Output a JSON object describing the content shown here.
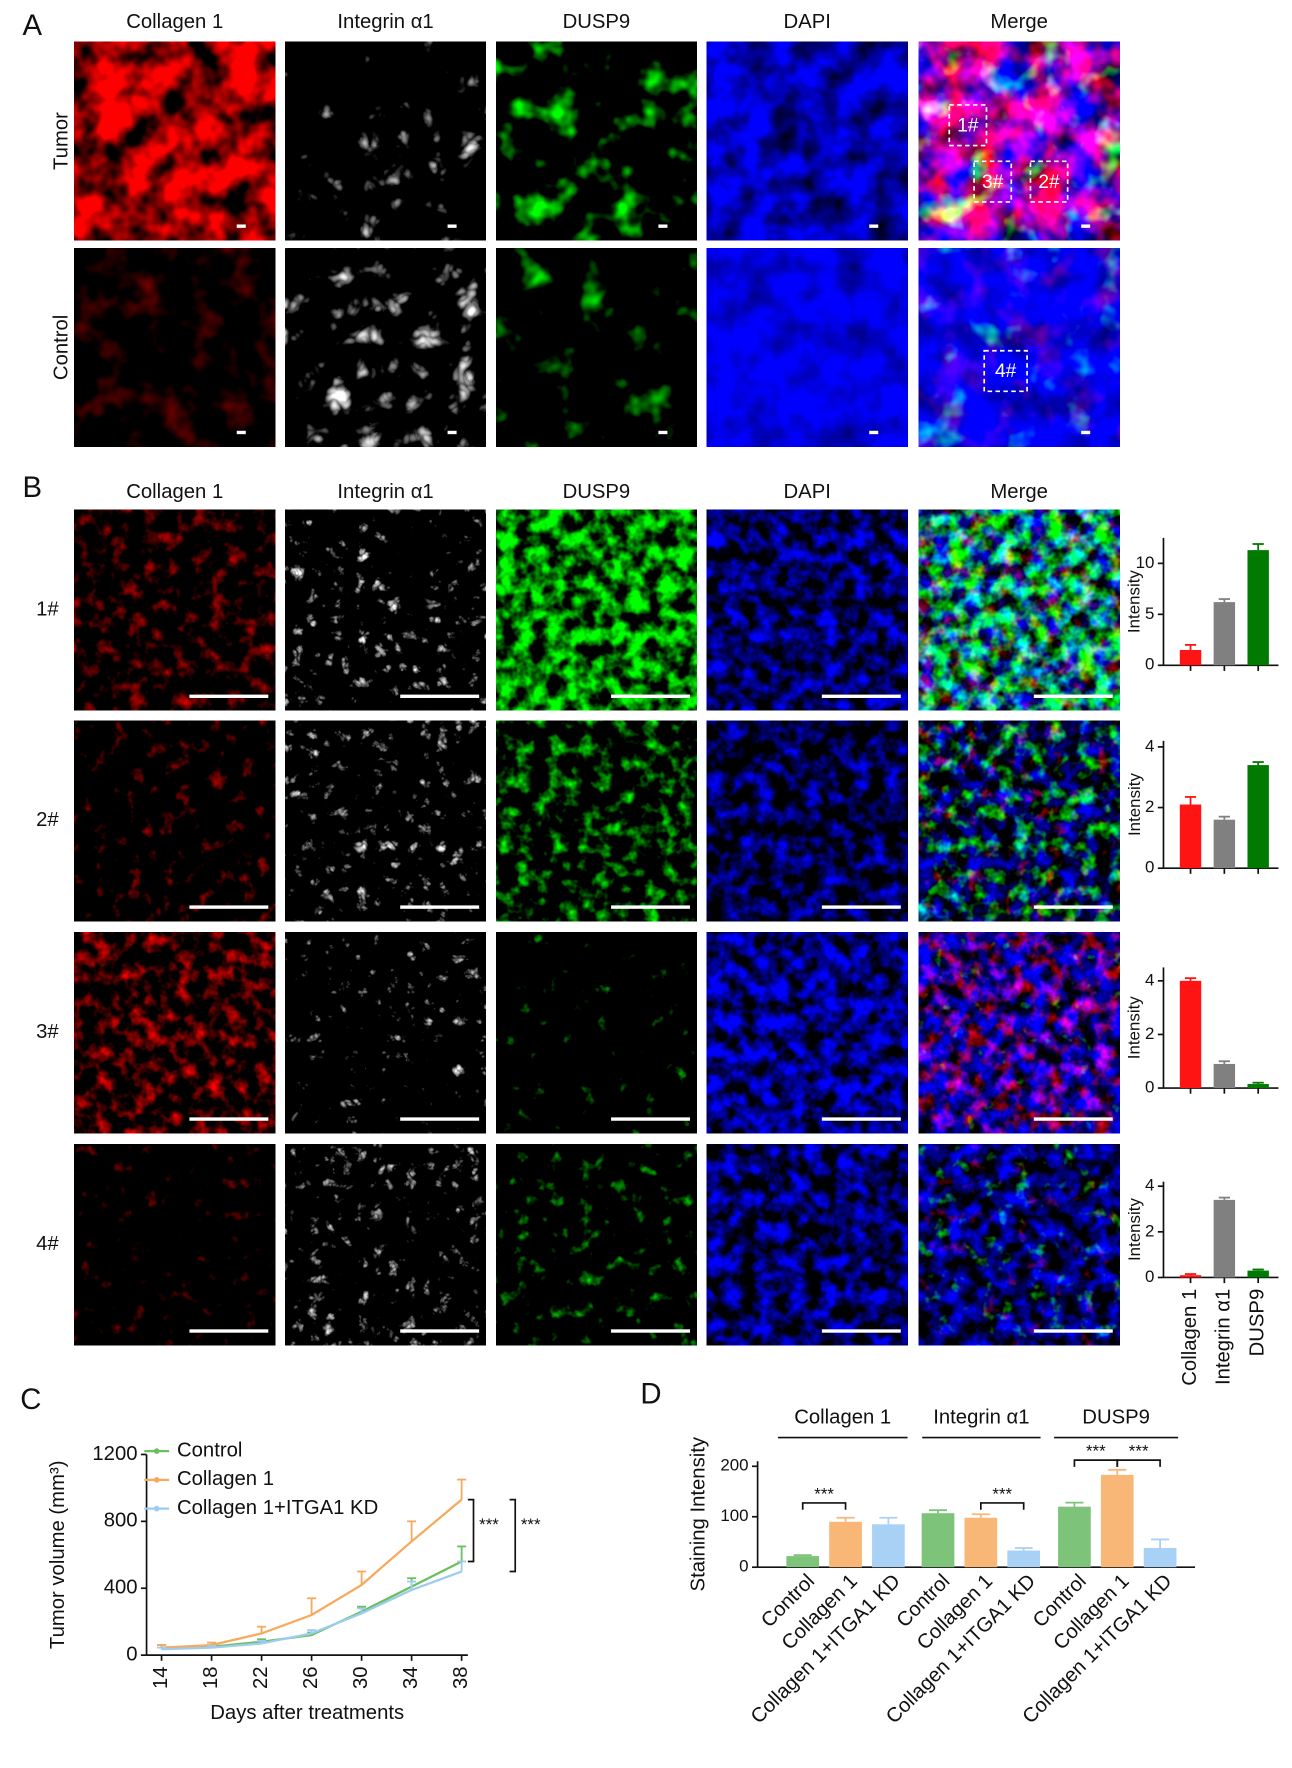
{
  "figure": {
    "panel_labels": [
      "A",
      "B",
      "C",
      "D"
    ],
    "panel_a": {
      "columns": [
        "Collagen 1",
        "Integrin α1",
        "DUSP9",
        "DAPI",
        "Merge"
      ],
      "rows": [
        "Tumor",
        "Control"
      ],
      "regions": [
        "1#",
        "3#",
        "2#",
        "4#"
      ]
    },
    "panel_b": {
      "columns": [
        "Collagen 1",
        "Integrin α1",
        "DUSP9",
        "DAPI",
        "Merge"
      ],
      "rows": [
        "1#",
        "2#",
        "3#",
        "4#"
      ]
    }
  },
  "chart_data": [
    {
      "type": "bar",
      "ylabel": "Intensity",
      "values": [
        1.5,
        6.2,
        11.3
      ],
      "errors": [
        0.5,
        0.3,
        0.6
      ],
      "colors": [
        "#ff1414",
        "#808080",
        "#007a00"
      ],
      "ylim": [
        0,
        12.5
      ],
      "yticks": [
        0,
        5,
        10
      ]
    },
    {
      "type": "bar",
      "ylabel": "Intensity",
      "values": [
        2.1,
        1.6,
        3.4
      ],
      "errors": [
        0.25,
        0.1,
        0.1
      ],
      "colors": [
        "#ff1414",
        "#808080",
        "#007a00"
      ],
      "ylim": [
        0,
        4.2
      ],
      "yticks": [
        0,
        2,
        4
      ]
    },
    {
      "type": "bar",
      "ylabel": "Intensity",
      "values": [
        4.0,
        0.9,
        0.15
      ],
      "errors": [
        0.1,
        0.1,
        0.05
      ],
      "colors": [
        "#ff1414",
        "#808080",
        "#007a00"
      ],
      "ylim": [
        0,
        4.5
      ],
      "yticks": [
        0,
        2,
        4
      ]
    },
    {
      "type": "bar",
      "ylabel": "Intensity",
      "categories": [
        "Collagen 1",
        "Integrin α1",
        "DUSP9"
      ],
      "values": [
        0.1,
        3.4,
        0.3
      ],
      "errors": [
        0.05,
        0.1,
        0.05
      ],
      "colors": [
        "#ff1414",
        "#808080",
        "#007a00"
      ],
      "ylim": [
        0,
        4.2
      ],
      "yticks": [
        0,
        2,
        4
      ]
    },
    {
      "type": "line",
      "ylabel": "Tumor volume (mm³)",
      "xlabel": "Days after treatments",
      "x": [
        14,
        18,
        22,
        26,
        30,
        34,
        38
      ],
      "xlim": [
        12.8,
        38.5
      ],
      "xticks": [
        14,
        18,
        22,
        26,
        30,
        34,
        38
      ],
      "ylim": [
        0,
        1200
      ],
      "yticks": [
        0,
        400,
        800,
        1200
      ],
      "series": [
        {
          "name": "Control",
          "color": "#6abf5e",
          "values": [
            40,
            50,
            80,
            120,
            260,
            410,
            560
          ],
          "errors": [
            20,
            10,
            15,
            15,
            30,
            50,
            90
          ]
        },
        {
          "name": "Collagen 1",
          "color": "#f7a95c",
          "values": [
            45,
            60,
            130,
            240,
            420,
            680,
            930
          ],
          "errors": [
            15,
            15,
            40,
            100,
            80,
            120,
            120
          ]
        },
        {
          "name": "Collagen 1+ITGA1 KD",
          "color": "#9ecbf0",
          "values": [
            35,
            45,
            70,
            130,
            250,
            390,
            500
          ],
          "errors": [
            10,
            10,
            15,
            20,
            30,
            50,
            60
          ]
        }
      ],
      "annotations": [
        "***",
        "***"
      ]
    },
    {
      "type": "bar",
      "ylabel": "Staining Intensity",
      "groups": [
        "Collagen 1",
        "Integrin α1",
        "DUSP9"
      ],
      "categories": [
        "Control",
        "Collagen 1",
        "Collagen 1+ITGA1 KD",
        "Control",
        "Collagen 1",
        "Collagen 1+ITGA1 KD",
        "Control",
        "Collagen 1",
        "Collagen 1+ITGA1 KD"
      ],
      "values": [
        22,
        90,
        85,
        107,
        98,
        33,
        120,
        183,
        38
      ],
      "errors": [
        2,
        8,
        13,
        6,
        7,
        5,
        8,
        10,
        17
      ],
      "colors": [
        "#7dc47a",
        "#f9b777",
        "#a9d1f5",
        "#7dc47a",
        "#f9b777",
        "#a9d1f5",
        "#7dc47a",
        "#f9b777",
        "#a9d1f5"
      ],
      "ylim": [
        0,
        210
      ],
      "yticks": [
        0,
        100,
        200
      ],
      "annotations": [
        "***",
        "***",
        "***",
        "***"
      ]
    }
  ]
}
